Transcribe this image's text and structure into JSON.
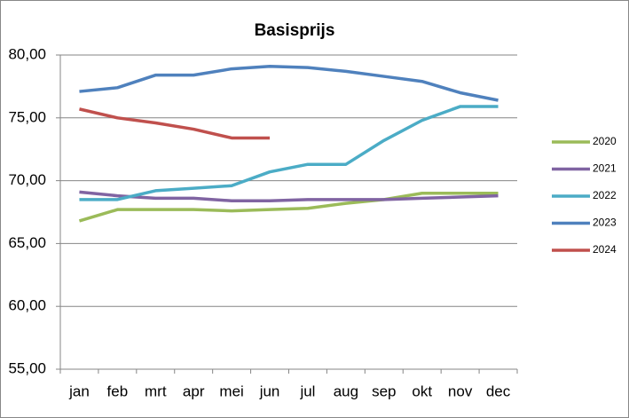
{
  "chart_data": {
    "type": "line",
    "title": "Basisprijs",
    "categories": [
      "jan",
      "feb",
      "mrt",
      "apr",
      "mei",
      "jun",
      "jul",
      "aug",
      "sep",
      "okt",
      "nov",
      "dec"
    ],
    "series": [
      {
        "name": "2020",
        "color": "#9bbb59",
        "values": [
          66.8,
          67.7,
          67.7,
          67.7,
          67.6,
          67.7,
          67.8,
          68.2,
          68.5,
          69.0,
          69.0,
          69.0
        ]
      },
      {
        "name": "2021",
        "color": "#8064a2",
        "values": [
          69.1,
          68.8,
          68.6,
          68.6,
          68.4,
          68.4,
          68.5,
          68.5,
          68.5,
          68.6,
          68.7,
          68.8
        ]
      },
      {
        "name": "2022",
        "color": "#4bacc6",
        "values": [
          68.5,
          68.5,
          69.2,
          69.4,
          69.6,
          70.7,
          71.3,
          71.3,
          73.2,
          74.8,
          75.9,
          75.9
        ]
      },
      {
        "name": "2023",
        "color": "#4f81bd",
        "values": [
          77.1,
          77.4,
          78.4,
          78.4,
          78.9,
          79.1,
          79.0,
          78.7,
          78.3,
          77.9,
          77.0,
          76.4
        ]
      },
      {
        "name": "2024",
        "color": "#c0504d",
        "values": [
          75.7,
          75.0,
          74.6,
          74.1,
          73.4,
          73.4,
          null,
          null,
          null,
          null,
          null,
          null
        ]
      }
    ],
    "ylim": [
      55,
      80
    ],
    "yticks": [
      {
        "value": 55,
        "label": "55,00"
      },
      {
        "value": 60,
        "label": "60,00"
      },
      {
        "value": 65,
        "label": "65,00"
      },
      {
        "value": 70,
        "label": "70,00"
      },
      {
        "value": 75,
        "label": "75,00"
      },
      {
        "value": 80,
        "label": "80,00"
      }
    ],
    "grid": true,
    "legend": "right"
  }
}
